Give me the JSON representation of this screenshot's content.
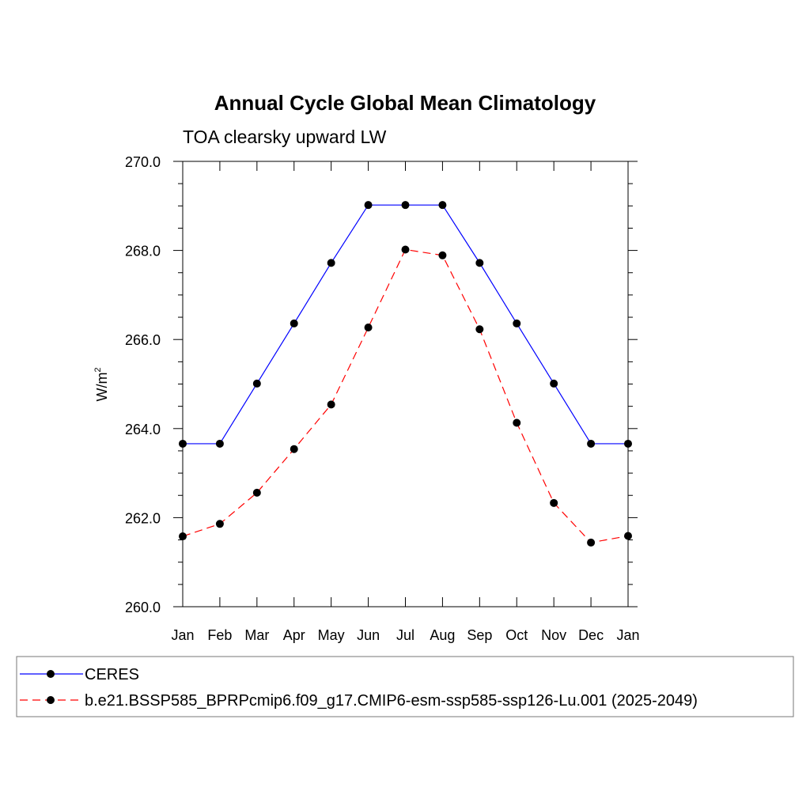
{
  "chart_data": {
    "type": "line",
    "title": "Annual Cycle Global Mean Climatology",
    "subtitle": "TOA clearsky upward LW",
    "ylabel": "W/m",
    "ylabel_sup": "2",
    "ylim": [
      260,
      270
    ],
    "y_ticks": [
      "260.0",
      "262.0",
      "264.0",
      "266.0",
      "268.0",
      "270.0"
    ],
    "y_tick_values": [
      260,
      262,
      264,
      266,
      268,
      270
    ],
    "categories": [
      "Jan",
      "Feb",
      "Mar",
      "Apr",
      "May",
      "Jun",
      "Jul",
      "Aug",
      "Sep",
      "Oct",
      "Nov",
      "Dec",
      "Jan"
    ],
    "grid": false,
    "legend_position": "bottom",
    "series": [
      {
        "name": "CERES",
        "color": "#0000ff",
        "line_style": "solid",
        "marker": "filled-circle",
        "values": [
          263.66,
          263.66,
          265.01,
          266.36,
          267.72,
          269.02,
          269.02,
          269.02,
          267.72,
          266.36,
          265.01,
          263.66,
          263.66
        ]
      },
      {
        "name": "b.e21.BSSP585_BPRPcmip6.f09_g17.CMIP6-esm-ssp585-ssp126-Lu.001 (2025-2049)",
        "color": "#ff0000",
        "line_style": "dashed",
        "marker": "filled-circle",
        "values": [
          261.58,
          261.86,
          262.56,
          263.54,
          264.54,
          266.27,
          268.02,
          267.89,
          266.23,
          264.13,
          262.33,
          261.44,
          261.59
        ]
      }
    ]
  }
}
